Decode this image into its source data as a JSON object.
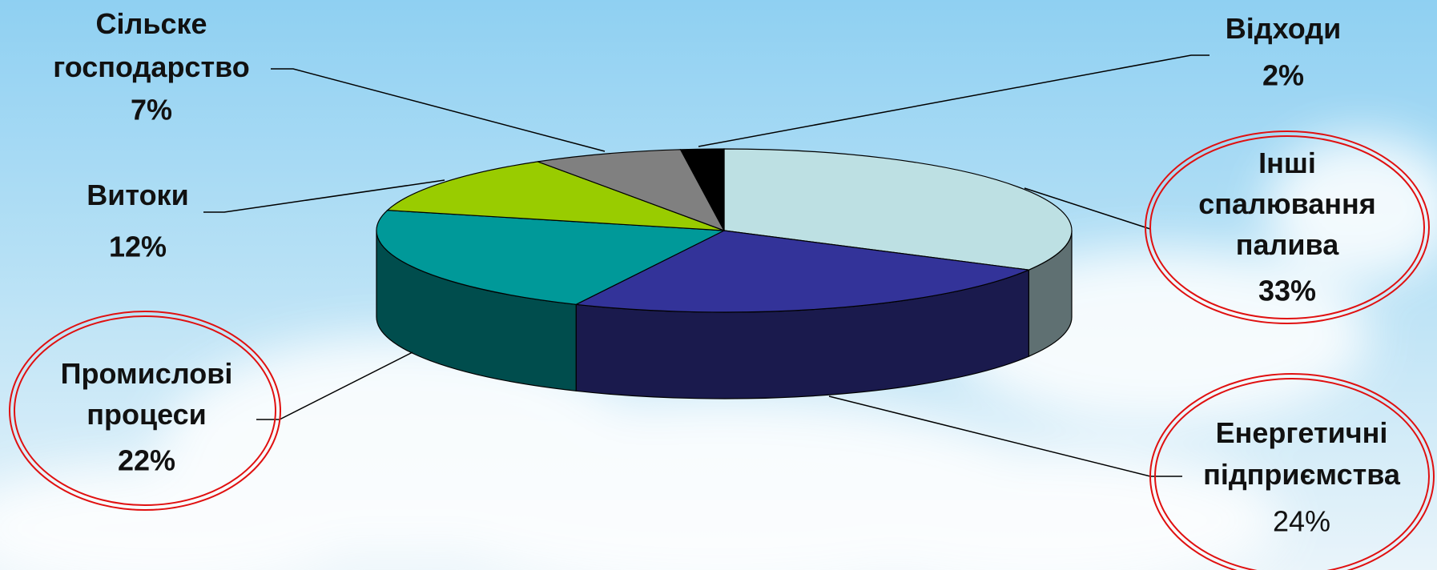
{
  "chart_data": {
    "type": "pie3d",
    "categories": [
      "Інші спалювання палива",
      "Енергетичні підприємства",
      "Промислові процеси",
      "Витоки",
      "Сільске господарство",
      "Відходи"
    ],
    "values": [
      33,
      24,
      22,
      12,
      7,
      2
    ],
    "value_labels": [
      "33%",
      "24%",
      "22%",
      "12%",
      "7%",
      "2%"
    ],
    "colors": [
      "#bde0e3",
      "#333399",
      "#009999",
      "#99cc00",
      "#808080",
      "#000000"
    ]
  }
}
